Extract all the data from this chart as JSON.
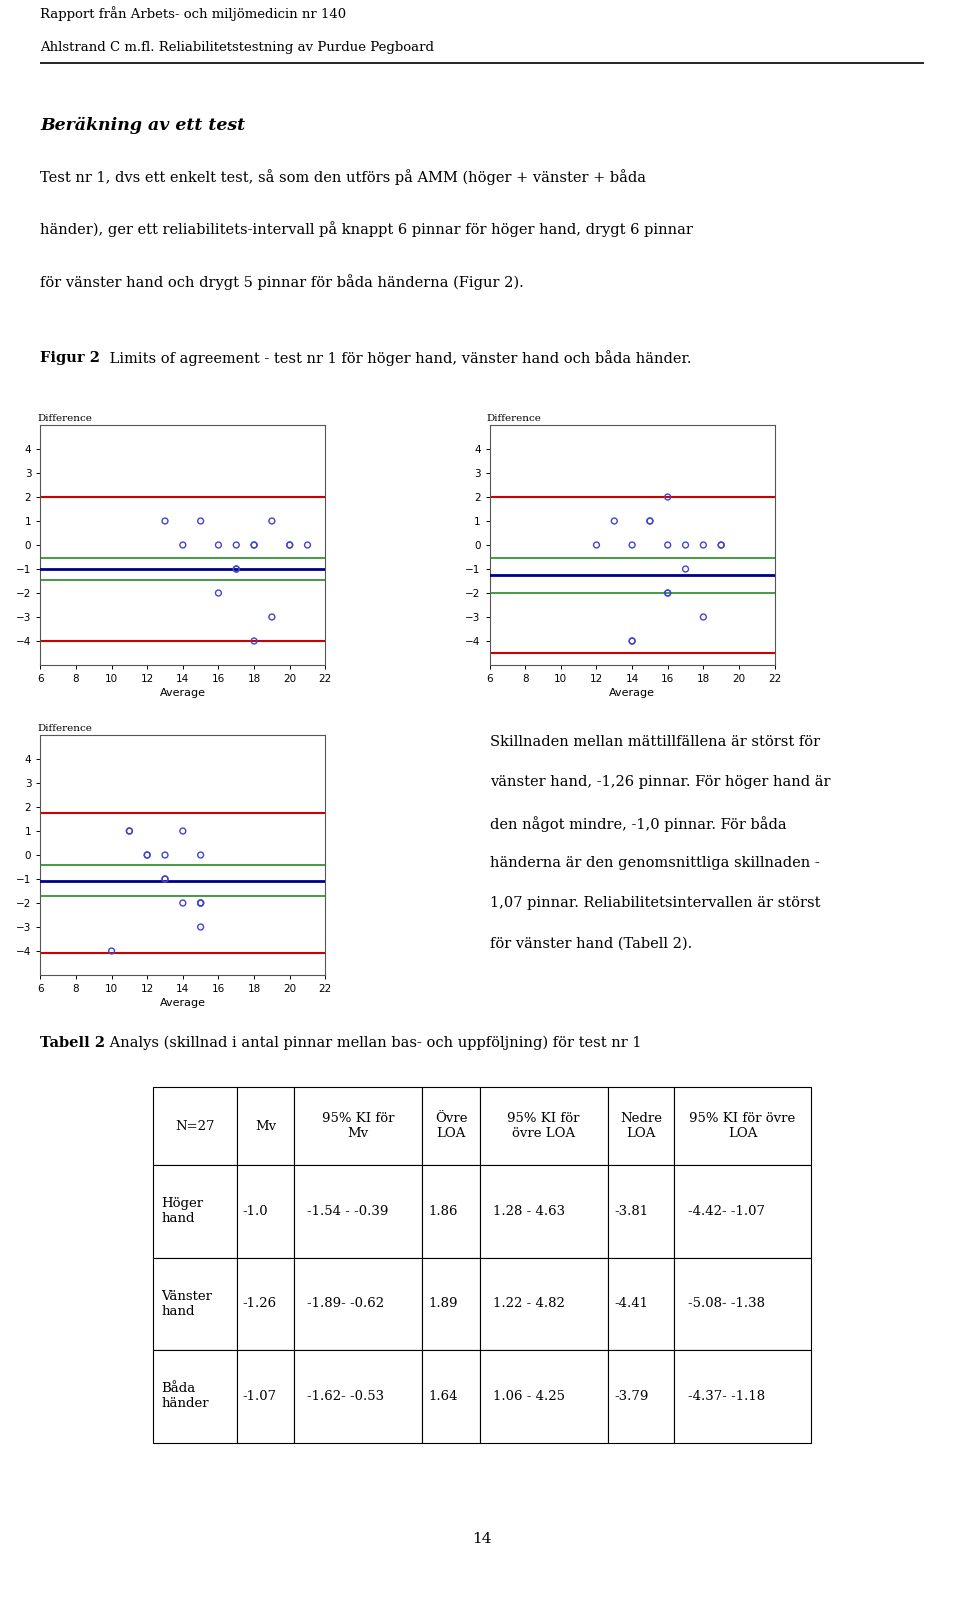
{
  "header_line1": "Rapport från Arbets- och miljömedicin nr 140",
  "header_line2": "Ahlstrand C m.fl. Reliabilitetstestning av Purdue Pegboard",
  "section_title": "Beräkning av ett test",
  "paragraph_lines": [
    "Test nr 1, dvs ett enkelt test, så som den utförs på AMM (höger + vänster + båda",
    "händer), ger ett reliabilitets-intervall på knappt 6 pinnar för höger hand, drygt 6 pinnar",
    "för vänster hand och drygt 5 pinnar för båda händerna (Figur 2)."
  ],
  "figur_label": "Figur 2",
  "figur_text": " Limits of agreement - test nr 1 för höger hand, vänster hand och båda händer.",
  "xlim": [
    6,
    22
  ],
  "ylim": [
    -5,
    5
  ],
  "xticks": [
    6,
    8,
    10,
    12,
    14,
    16,
    18,
    20,
    22
  ],
  "yticks": [
    -4,
    -3,
    -2,
    -1,
    0,
    1,
    2,
    3,
    4
  ],
  "xlabel": "Average",
  "ylabel_diff": "Difference",
  "plot1_mean_line": -1.0,
  "plot1_upper_loa": -0.54,
  "plot1_lower_loa": -1.46,
  "plot1_outer_upper": 2.0,
  "plot1_outer_lower": -4.0,
  "plot1_points_x": [
    13,
    14,
    15,
    16,
    16,
    17,
    17,
    17,
    18,
    18,
    18,
    19,
    19,
    20,
    20,
    21
  ],
  "plot1_points_y": [
    1,
    0,
    1,
    0,
    -2,
    -1,
    -1,
    0,
    0,
    -4,
    0,
    -3,
    1,
    0,
    0,
    0
  ],
  "plot2_mean_line": -1.26,
  "plot2_upper_loa": -0.54,
  "plot2_lower_loa": -2.0,
  "plot2_outer_upper": 2.0,
  "plot2_outer_lower": -4.5,
  "plot2_points_x": [
    12,
    13,
    14,
    14,
    14,
    15,
    15,
    16,
    16,
    16,
    16,
    17,
    17,
    18,
    18,
    19,
    19
  ],
  "plot2_points_y": [
    0,
    1,
    0,
    -4,
    -4,
    1,
    1,
    2,
    -2,
    -2,
    0,
    -1,
    0,
    0,
    -3,
    0,
    0
  ],
  "plot3_mean_line": -1.07,
  "plot3_upper_loa": -0.43,
  "plot3_lower_loa": -1.71,
  "plot3_outer_upper": 1.75,
  "plot3_outer_lower": -4.07,
  "plot3_points_x": [
    10,
    11,
    11,
    12,
    12,
    13,
    13,
    13,
    14,
    14,
    15,
    15,
    15,
    15,
    15
  ],
  "plot3_points_y": [
    -4,
    1,
    1,
    0,
    0,
    -1,
    -1,
    0,
    -2,
    1,
    -2,
    -2,
    -2,
    -3,
    0
  ],
  "color_mean": "#00008B",
  "color_loa": "#228B22",
  "color_outer": "#CC0000",
  "color_points": "#4444CC",
  "side_text_lines": [
    "Skillnaden mellan mättillfällena är störst för",
    "vänster hand, -1,26 pinnar. För höger hand är",
    "den något mindre, -1,0 pinnar. För båda",
    "händerna är den genomsnittliga skillnaden -",
    "1,07 pinnar. Reliabilitetsintervallen är störst",
    "för vänster hand (Tabell 2)."
  ],
  "tabell_title_bold": "Tabell 2",
  "tabell_title_rest": " Analys (skillnad i antal pinnar mellan bas- och uppföljning) för test nr 1",
  "table_col_headers": [
    "N=27",
    "Mv",
    "95% KI för\nMv",
    "Övre\nLOA",
    "95% KI för\növre LOA",
    "Nedre\nLOA",
    "95% KI för övre\nLOA"
  ],
  "table_rows": [
    [
      "Höger\nhand",
      "-1.0",
      "-1.54 - -0.39",
      "1.86",
      "1.28 - 4.63",
      "-3.81",
      "-4.42- -1.07"
    ],
    [
      "Vänster\nhand",
      "-1.26",
      "-1.89- -0.62",
      "1.89",
      "1.22 - 4.82",
      "-4.41",
      "-5.08- -1.38"
    ],
    [
      "Båda\nhänder",
      "-1.07",
      "-1.62- -0.53",
      "1.64",
      "1.06 - 4.25",
      "-3.79",
      "-4.37- -1.18"
    ]
  ],
  "page_number": "14"
}
